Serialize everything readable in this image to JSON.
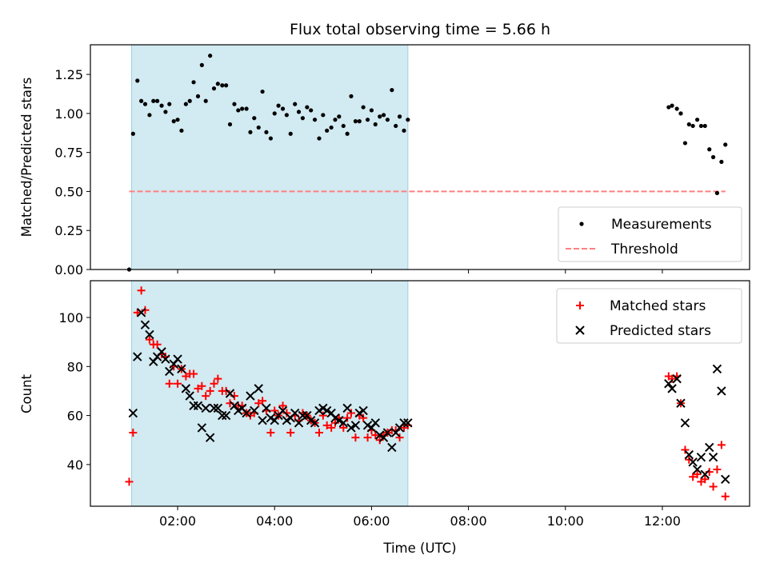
{
  "chart_data": [
    {
      "type": "scatter",
      "title": "Flux total observing time = 5.66 h",
      "ylabel": "Matched/Predicted stars",
      "xlabel": "",
      "x_unit": "hours UTC",
      "xlim": [
        0.2,
        13.8
      ],
      "ylim": [
        0.0,
        1.44
      ],
      "yticks": [
        "0.00",
        "0.25",
        "0.50",
        "0.75",
        "1.00",
        "1.25"
      ],
      "grid": false,
      "shaded_interval": [
        1.05,
        6.75
      ],
      "shade_color": "#add8e6",
      "legend_position": "lower right",
      "threshold": {
        "name": "Threshold",
        "y": 0.5,
        "x_range": [
          1.0,
          13.3
        ],
        "color": "#ff7f7f",
        "style": "dashed"
      },
      "series": [
        {
          "name": "Measurements",
          "marker": "dot",
          "color": "#000000",
          "points": [
            [
              1.0,
              0.0
            ],
            [
              1.08,
              0.87
            ],
            [
              1.17,
              1.21
            ],
            [
              1.25,
              1.08
            ],
            [
              1.33,
              1.06
            ],
            [
              1.42,
              0.99
            ],
            [
              1.5,
              1.08
            ],
            [
              1.58,
              1.08
            ],
            [
              1.67,
              1.05
            ],
            [
              1.75,
              1.01
            ],
            [
              1.83,
              1.06
            ],
            [
              1.92,
              0.95
            ],
            [
              2.0,
              0.96
            ],
            [
              2.08,
              0.89
            ],
            [
              2.17,
              1.06
            ],
            [
              2.25,
              1.08
            ],
            [
              2.33,
              1.2
            ],
            [
              2.42,
              1.11
            ],
            [
              2.5,
              1.31
            ],
            [
              2.58,
              1.08
            ],
            [
              2.67,
              1.37
            ],
            [
              2.75,
              1.16
            ],
            [
              2.83,
              1.19
            ],
            [
              2.92,
              1.18
            ],
            [
              3.0,
              1.18
            ],
            [
              3.08,
              0.93
            ],
            [
              3.17,
              1.06
            ],
            [
              3.25,
              1.02
            ],
            [
              3.33,
              1.03
            ],
            [
              3.42,
              1.03
            ],
            [
              3.5,
              0.88
            ],
            [
              3.58,
              0.97
            ],
            [
              3.67,
              0.91
            ],
            [
              3.75,
              1.14
            ],
            [
              3.83,
              0.88
            ],
            [
              3.92,
              0.84
            ],
            [
              4.0,
              1.0
            ],
            [
              4.08,
              1.05
            ],
            [
              4.17,
              1.03
            ],
            [
              4.25,
              0.99
            ],
            [
              4.33,
              0.87
            ],
            [
              4.42,
              1.06
            ],
            [
              4.5,
              1.01
            ],
            [
              4.58,
              0.97
            ],
            [
              4.67,
              1.04
            ],
            [
              4.75,
              1.02
            ],
            [
              4.83,
              0.96
            ],
            [
              4.92,
              0.84
            ],
            [
              5.0,
              0.99
            ],
            [
              5.08,
              0.89
            ],
            [
              5.17,
              0.91
            ],
            [
              5.25,
              0.96
            ],
            [
              5.33,
              0.98
            ],
            [
              5.42,
              0.92
            ],
            [
              5.5,
              0.87
            ],
            [
              5.58,
              1.11
            ],
            [
              5.67,
              0.95
            ],
            [
              5.75,
              0.95
            ],
            [
              5.83,
              1.04
            ],
            [
              5.92,
              0.96
            ],
            [
              6.0,
              1.02
            ],
            [
              6.08,
              0.93
            ],
            [
              6.17,
              0.98
            ],
            [
              6.25,
              0.99
            ],
            [
              6.33,
              0.96
            ],
            [
              6.42,
              1.15
            ],
            [
              6.5,
              0.92
            ],
            [
              6.58,
              0.98
            ],
            [
              6.67,
              0.89
            ],
            [
              6.75,
              0.96
            ],
            [
              12.13,
              1.04
            ],
            [
              12.2,
              1.05
            ],
            [
              12.3,
              1.03
            ],
            [
              12.38,
              1.0
            ],
            [
              12.47,
              0.81
            ],
            [
              12.55,
              0.93
            ],
            [
              12.63,
              0.92
            ],
            [
              12.72,
              0.96
            ],
            [
              12.8,
              0.92
            ],
            [
              12.88,
              0.92
            ],
            [
              12.97,
              0.77
            ],
            [
              13.05,
              0.72
            ],
            [
              13.13,
              0.49
            ],
            [
              13.22,
              0.69
            ],
            [
              13.3,
              0.8
            ]
          ]
        }
      ]
    },
    {
      "type": "scatter",
      "title": "",
      "ylabel": "Count",
      "xlabel": "Time (UTC)",
      "x_unit": "hours UTC",
      "xlim": [
        0.2,
        13.8
      ],
      "ylim": [
        23,
        115
      ],
      "yticks": [
        "40",
        "60",
        "80",
        "100"
      ],
      "xticks": [
        "02:00",
        "04:00",
        "06:00",
        "08:00",
        "10:00",
        "12:00"
      ],
      "grid": false,
      "shaded_interval": [
        1.05,
        6.75
      ],
      "shade_color": "#add8e6",
      "legend_position": "upper right",
      "series": [
        {
          "name": "Matched stars",
          "marker": "plus",
          "color": "#ff0000",
          "points": [
            [
              1.0,
              33
            ],
            [
              1.08,
              53
            ],
            [
              1.17,
              102
            ],
            [
              1.25,
              111
            ],
            [
              1.33,
              103
            ],
            [
              1.42,
              91
            ],
            [
              1.5,
              89
            ],
            [
              1.58,
              89
            ],
            [
              1.67,
              85
            ],
            [
              1.75,
              84
            ],
            [
              1.83,
              73
            ],
            [
              1.92,
              80
            ],
            [
              2.0,
              73
            ],
            [
              2.08,
              79
            ],
            [
              2.17,
              76
            ],
            [
              2.25,
              77
            ],
            [
              2.33,
              77
            ],
            [
              2.42,
              71
            ],
            [
              2.5,
              72
            ],
            [
              2.58,
              68
            ],
            [
              2.67,
              70
            ],
            [
              2.75,
              73
            ],
            [
              2.83,
              75
            ],
            [
              2.92,
              70
            ],
            [
              3.0,
              70
            ],
            [
              3.08,
              65
            ],
            [
              3.17,
              68
            ],
            [
              3.25,
              64
            ],
            [
              3.33,
              64
            ],
            [
              3.42,
              61
            ],
            [
              3.5,
              60
            ],
            [
              3.58,
              61
            ],
            [
              3.67,
              65
            ],
            [
              3.75,
              66
            ],
            [
              3.83,
              62
            ],
            [
              3.92,
              53
            ],
            [
              4.0,
              62
            ],
            [
              4.08,
              60
            ],
            [
              4.17,
              64
            ],
            [
              4.25,
              61
            ],
            [
              4.33,
              53
            ],
            [
              4.42,
              60
            ],
            [
              4.5,
              58
            ],
            [
              4.58,
              61
            ],
            [
              4.67,
              60
            ],
            [
              4.75,
              58
            ],
            [
              4.83,
              57
            ],
            [
              4.92,
              53
            ],
            [
              5.0,
              60
            ],
            [
              5.08,
              56
            ],
            [
              5.17,
              55
            ],
            [
              5.25,
              57
            ],
            [
              5.33,
              59
            ],
            [
              5.42,
              55
            ],
            [
              5.5,
              59
            ],
            [
              5.58,
              61
            ],
            [
              5.67,
              51
            ],
            [
              5.75,
              60
            ],
            [
              5.83,
              59
            ],
            [
              5.92,
              51
            ],
            [
              6.0,
              54
            ],
            [
              6.08,
              52
            ],
            [
              6.17,
              50
            ],
            [
              6.25,
              52
            ],
            [
              6.33,
              53
            ],
            [
              6.42,
              54
            ],
            [
              6.5,
              54
            ],
            [
              6.58,
              51
            ],
            [
              6.67,
              55
            ],
            [
              6.75,
              56
            ],
            [
              12.13,
              76
            ],
            [
              12.2,
              75
            ],
            [
              12.3,
              76
            ],
            [
              12.38,
              65
            ],
            [
              12.47,
              46
            ],
            [
              12.55,
              42
            ],
            [
              12.63,
              35
            ],
            [
              12.72,
              36
            ],
            [
              12.8,
              33
            ],
            [
              12.88,
              34
            ],
            [
              12.97,
              37
            ],
            [
              13.05,
              31
            ],
            [
              13.13,
              38
            ],
            [
              13.22,
              48
            ],
            [
              13.3,
              27
            ]
          ]
        },
        {
          "name": "Predicted stars",
          "marker": "x",
          "color": "#000000",
          "points": [
            [
              1.08,
              61
            ],
            [
              1.17,
              84
            ],
            [
              1.25,
              102
            ],
            [
              1.33,
              97
            ],
            [
              1.42,
              93
            ],
            [
              1.5,
              82
            ],
            [
              1.58,
              84
            ],
            [
              1.67,
              86
            ],
            [
              1.75,
              83
            ],
            [
              1.83,
              78
            ],
            [
              1.92,
              81
            ],
            [
              2.0,
              83
            ],
            [
              2.08,
              79
            ],
            [
              2.17,
              71
            ],
            [
              2.25,
              68
            ],
            [
              2.33,
              64
            ],
            [
              2.42,
              64
            ],
            [
              2.5,
              55
            ],
            [
              2.58,
              63
            ],
            [
              2.67,
              51
            ],
            [
              2.75,
              63
            ],
            [
              2.83,
              63
            ],
            [
              2.92,
              60
            ],
            [
              3.0,
              60
            ],
            [
              3.08,
              69
            ],
            [
              3.17,
              64
            ],
            [
              3.25,
              62
            ],
            [
              3.33,
              63
            ],
            [
              3.42,
              61
            ],
            [
              3.5,
              68
            ],
            [
              3.58,
              62
            ],
            [
              3.67,
              71
            ],
            [
              3.75,
              58
            ],
            [
              3.83,
              63
            ],
            [
              3.92,
              59
            ],
            [
              4.0,
              58
            ],
            [
              4.08,
              60
            ],
            [
              4.17,
              62
            ],
            [
              4.25,
              58
            ],
            [
              4.33,
              59
            ],
            [
              4.42,
              61
            ],
            [
              4.5,
              57
            ],
            [
              4.58,
              60
            ],
            [
              4.67,
              60
            ],
            [
              4.75,
              58
            ],
            [
              4.83,
              57
            ],
            [
              4.92,
              62
            ],
            [
              5.0,
              63
            ],
            [
              5.08,
              62
            ],
            [
              5.17,
              61
            ],
            [
              5.25,
              59
            ],
            [
              5.33,
              58
            ],
            [
              5.42,
              57
            ],
            [
              5.5,
              63
            ],
            [
              5.58,
              55
            ],
            [
              5.67,
              56
            ],
            [
              5.75,
              61
            ],
            [
              5.83,
              62
            ],
            [
              5.92,
              56
            ],
            [
              6.0,
              55
            ],
            [
              6.08,
              57
            ],
            [
              6.17,
              52
            ],
            [
              6.25,
              51
            ],
            [
              6.33,
              53
            ],
            [
              6.42,
              47
            ],
            [
              6.5,
              53
            ],
            [
              6.58,
              55
            ],
            [
              6.67,
              57
            ],
            [
              6.75,
              57
            ],
            [
              12.13,
              73
            ],
            [
              12.2,
              71
            ],
            [
              12.3,
              75
            ],
            [
              12.38,
              65
            ],
            [
              12.47,
              57
            ],
            [
              12.55,
              44
            ],
            [
              12.63,
              41
            ],
            [
              12.72,
              38
            ],
            [
              12.8,
              43
            ],
            [
              12.88,
              36
            ],
            [
              12.97,
              47
            ],
            [
              13.05,
              43
            ],
            [
              13.13,
              79
            ],
            [
              13.22,
              70
            ],
            [
              13.3,
              34
            ]
          ]
        }
      ]
    }
  ]
}
